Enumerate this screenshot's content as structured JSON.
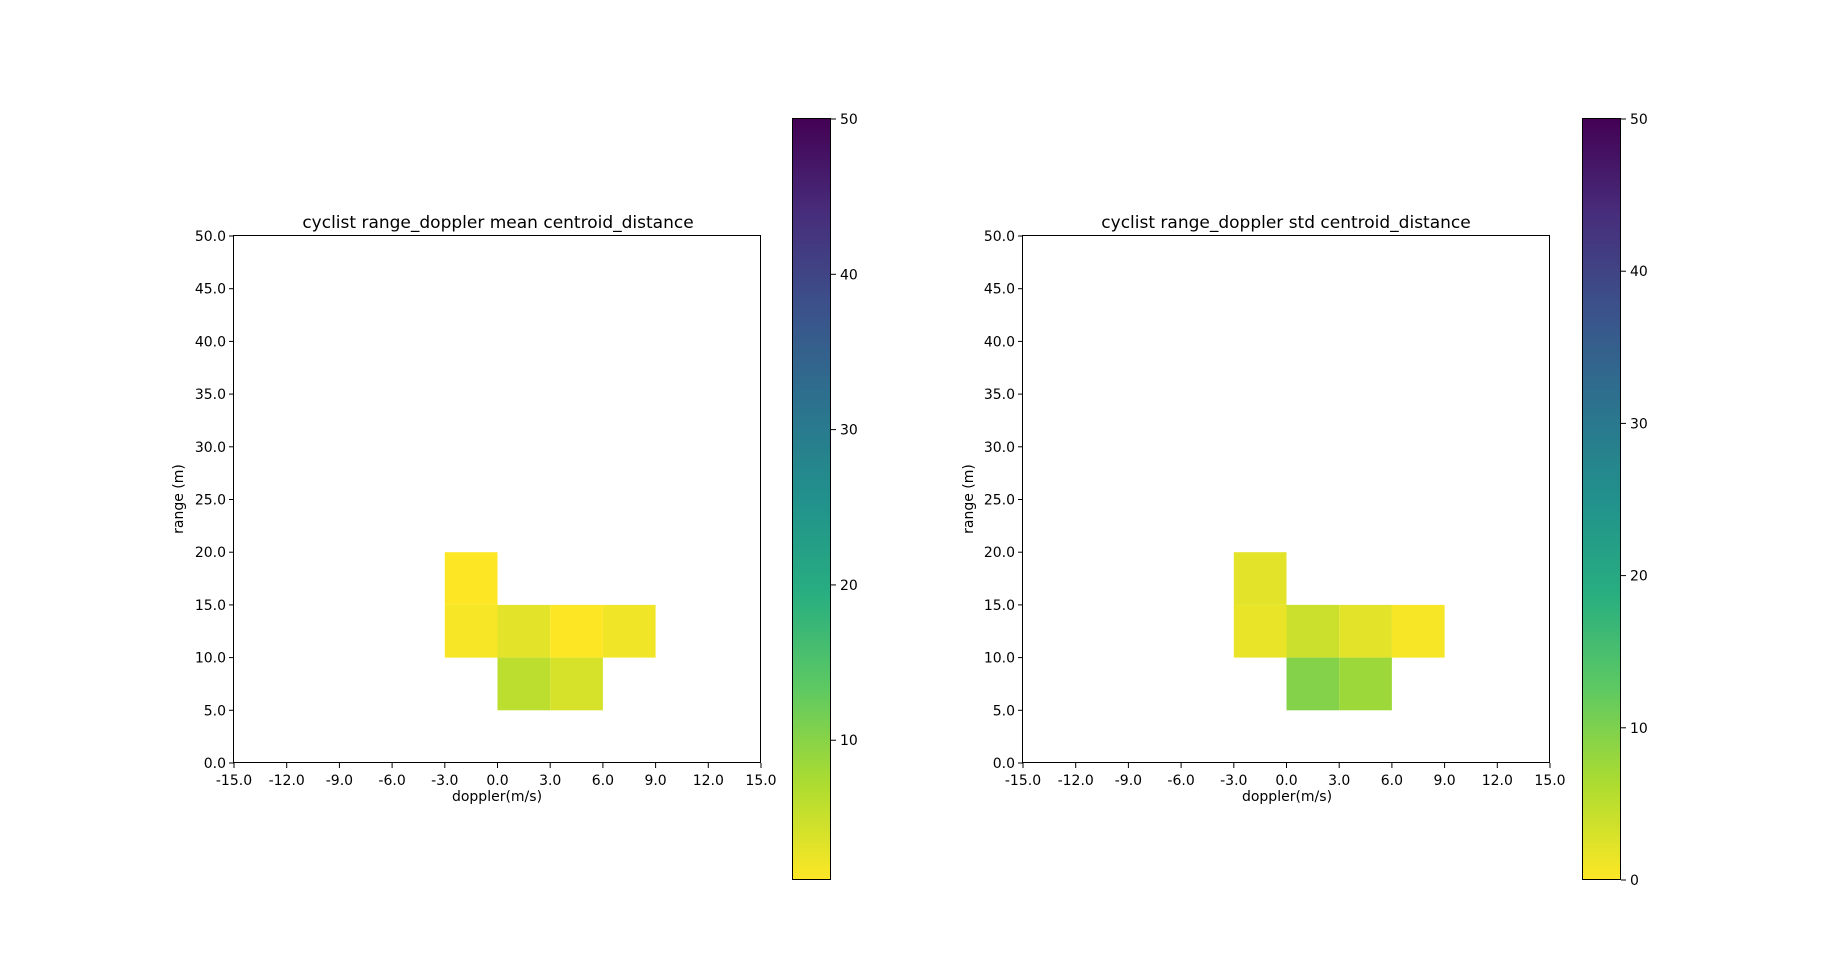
{
  "chart_data": [
    {
      "type": "heatmap",
      "title": "cyclist range_doppler mean centroid_distance",
      "xlabel": "doppler(m/s)",
      "ylabel": "range (m)",
      "x_ticks": [
        "-15.0",
        "-12.0",
        "-9.0",
        "-6.0",
        "-3.0",
        "0.0",
        "3.0",
        "6.0",
        "9.0",
        "12.0",
        "15.0"
      ],
      "y_ticks": [
        "0.0",
        "5.0",
        "10.0",
        "15.0",
        "20.0",
        "25.0",
        "30.0",
        "35.0",
        "40.0",
        "45.0",
        "50.0"
      ],
      "xlim": [
        -15,
        15
      ],
      "ylim": [
        0,
        50
      ],
      "cells": [
        {
          "x": [
            -3,
            0
          ],
          "y": [
            15,
            20
          ],
          "value": 1.0
        },
        {
          "x": [
            -3,
            0
          ],
          "y": [
            10,
            15
          ],
          "value": 1.5
        },
        {
          "x": [
            0,
            3
          ],
          "y": [
            10,
            15
          ],
          "value": 3.0
        },
        {
          "x": [
            3,
            6
          ],
          "y": [
            10,
            15
          ],
          "value": 1.0
        },
        {
          "x": [
            6,
            9
          ],
          "y": [
            10,
            15
          ],
          "value": 2.0
        },
        {
          "x": [
            0,
            3
          ],
          "y": [
            5,
            10
          ],
          "value": 6.0
        },
        {
          "x": [
            3,
            6
          ],
          "y": [
            5,
            10
          ],
          "value": 4.0
        }
      ],
      "colorbar": {
        "colormap": "viridis_r",
        "range": [
          1,
          50
        ],
        "ticks": [
          "10",
          "20",
          "30",
          "40",
          "50"
        ],
        "tick_values": [
          10,
          20,
          30,
          40,
          50
        ]
      }
    },
    {
      "type": "heatmap",
      "title": "cyclist range_doppler std centroid_distance",
      "xlabel": "doppler(m/s)",
      "ylabel": "range (m)",
      "x_ticks": [
        "-15.0",
        "-12.0",
        "-9.0",
        "-6.0",
        "-3.0",
        "0.0",
        "3.0",
        "6.0",
        "9.0",
        "12.0",
        "15.0"
      ],
      "y_ticks": [
        "0.0",
        "5.0",
        "10.0",
        "15.0",
        "20.0",
        "25.0",
        "30.0",
        "35.0",
        "40.0",
        "45.0",
        "50.0"
      ],
      "xlim": [
        -15,
        15
      ],
      "ylim": [
        0,
        50
      ],
      "cells": [
        {
          "x": [
            -3,
            0
          ],
          "y": [
            15,
            20
          ],
          "value": 2.0
        },
        {
          "x": [
            -3,
            0
          ],
          "y": [
            10,
            15
          ],
          "value": 1.5
        },
        {
          "x": [
            0,
            3
          ],
          "y": [
            10,
            15
          ],
          "value": 4.0
        },
        {
          "x": [
            3,
            6
          ],
          "y": [
            10,
            15
          ],
          "value": 2.0
        },
        {
          "x": [
            6,
            9
          ],
          "y": [
            10,
            15
          ],
          "value": 0.5
        },
        {
          "x": [
            0,
            3
          ],
          "y": [
            5,
            10
          ],
          "value": 9.5
        },
        {
          "x": [
            3,
            6
          ],
          "y": [
            5,
            10
          ],
          "value": 7.5
        }
      ],
      "colorbar": {
        "colormap": "viridis_r",
        "range": [
          0,
          50
        ],
        "ticks": [
          "0",
          "10",
          "20",
          "30",
          "40",
          "50"
        ],
        "tick_values": [
          0,
          10,
          20,
          30,
          40,
          50
        ]
      }
    }
  ]
}
